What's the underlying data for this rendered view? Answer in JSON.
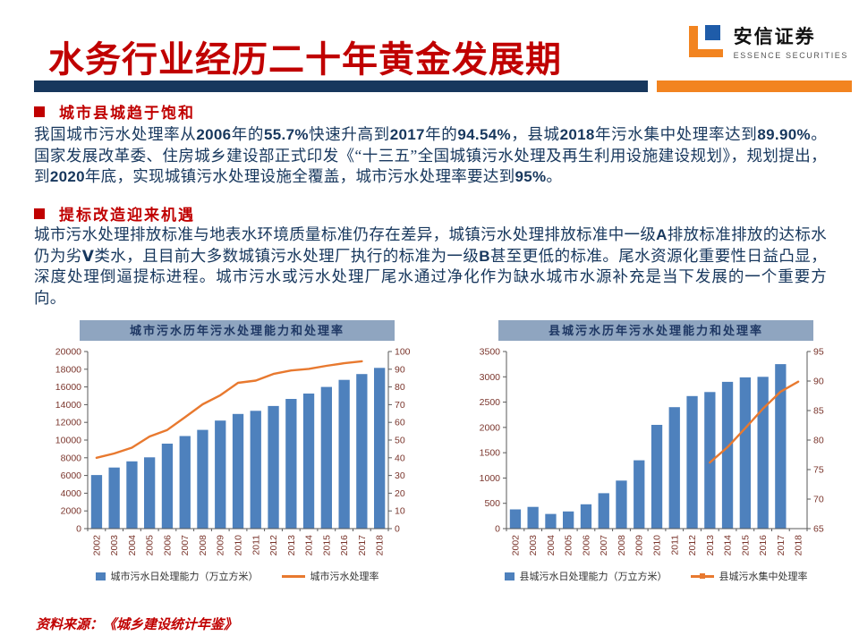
{
  "colors": {
    "accent_red": "#C00000",
    "navy": "#17375D",
    "orange_bar": "#F28420",
    "bar_blue": "#4E81BD",
    "line_orange": "#E8792F",
    "chart_header_bg": "#8FA5C0",
    "axis_label": "#7A352C"
  },
  "slide": {
    "title": "水务行业经历二十年黄金发展期",
    "logo": {
      "name": "安信证券",
      "subtitle": "ESSENCE SECURITIES"
    },
    "bullets": [
      {
        "heading": "城市县城趋于饱和",
        "segments": [
          {
            "t": "我国城市污水处理率从"
          },
          {
            "t": "2006",
            "b": true
          },
          {
            "t": "年的"
          },
          {
            "t": "55.7%",
            "b": true
          },
          {
            "t": "快速升高到"
          },
          {
            "t": "2017",
            "b": true
          },
          {
            "t": "年的"
          },
          {
            "t": "94.54%",
            "b": true
          },
          {
            "t": "，县城"
          },
          {
            "t": "2018",
            "b": true
          },
          {
            "t": "年污水集中处理率达到"
          },
          {
            "t": "89.90%",
            "b": true
          },
          {
            "t": "。国家发展改革委、住房城乡建设部正式印发《“十三五”全国城镇污水处理及再生利用设施建设规划》，规划提出，到"
          },
          {
            "t": "2020",
            "b": true
          },
          {
            "t": "年底，实现城镇污水处理设施全覆盖，城市污水处理率要达到"
          },
          {
            "t": "95%",
            "b": true
          },
          {
            "t": "。"
          }
        ]
      },
      {
        "heading": "提标改造迎来机遇",
        "segments": [
          {
            "t": "城市污水处理排放标准与地表水环境质量标准仍存在差异，城镇污水处理排放标准中一级"
          },
          {
            "t": "A",
            "b": true
          },
          {
            "t": "排放标准排放的达标水仍为劣"
          },
          {
            "t": "Ⅴ",
            "b": true
          },
          {
            "t": "类水，且目前大多数城镇污水处理厂执行的标准为一级"
          },
          {
            "t": "B",
            "b": true
          },
          {
            "t": "甚至更低的标准。尾水资源化重要性日益凸显，深度处理倒逼提标进程。城市污水或污水处理厂尾水通过净化作为缺水城市水源补充是当下发展的一个重要方向。"
          }
        ]
      }
    ],
    "source": "资料来源：《城乡建设统计年鉴》"
  },
  "chart_data": [
    {
      "type": "bar+line",
      "title": "城市污水历年污水处理能力和处理率",
      "categories": [
        "2002",
        "2003",
        "2004",
        "2005",
        "2006",
        "2007",
        "2008",
        "2009",
        "2010",
        "2011",
        "2012",
        "2013",
        "2014",
        "2015",
        "2016",
        "2017",
        "2018"
      ],
      "series": [
        {
          "name": "城市污水日处理能力（万立方米）",
          "type": "bar",
          "axis": "left",
          "values": [
            6050,
            6900,
            7600,
            8050,
            9600,
            10450,
            11150,
            12200,
            12950,
            13300,
            13850,
            14650,
            15250,
            16000,
            16800,
            17450,
            18150
          ]
        },
        {
          "name": "城市污水处理率",
          "type": "line",
          "axis": "right",
          "values": [
            40,
            42.4,
            45.7,
            52,
            55.7,
            62.9,
            70.2,
            75.3,
            82.3,
            83.6,
            87.3,
            89.3,
            90.2,
            91.9,
            93.4,
            94.5,
            null
          ]
        }
      ],
      "left_axis": {
        "min": 0,
        "max": 20000,
        "step": 2000
      },
      "right_axis": {
        "min": 0,
        "max": 100,
        "step": 10
      },
      "grid": false,
      "legend_position": "bottom"
    },
    {
      "type": "bar+line",
      "title": "县城污水历年污水处理能力和处理率",
      "categories": [
        "2002",
        "2003",
        "2004",
        "2005",
        "2006",
        "2007",
        "2008",
        "2009",
        "2010",
        "2011",
        "2012",
        "2013",
        "2014",
        "2015",
        "2016",
        "2017",
        "2018"
      ],
      "series": [
        {
          "name": "县城污水日处理能力（万立方米）",
          "type": "bar",
          "axis": "left",
          "values": [
            380,
            430,
            290,
            340,
            480,
            700,
            950,
            1350,
            2050,
            2400,
            2620,
            2700,
            2900,
            2990,
            3000,
            3250,
            null
          ]
        },
        {
          "name": "县城污水集中处理率",
          "type": "line",
          "axis": "right",
          "values": [
            null,
            null,
            null,
            null,
            null,
            null,
            null,
            null,
            null,
            null,
            null,
            76.2,
            78.8,
            82,
            85.3,
            88.2,
            89.9
          ]
        }
      ],
      "left_axis": {
        "min": 0,
        "max": 3500,
        "step": 500
      },
      "right_axis": {
        "min": 65,
        "max": 95,
        "step": 5
      },
      "grid": false,
      "legend_position": "bottom"
    }
  ]
}
